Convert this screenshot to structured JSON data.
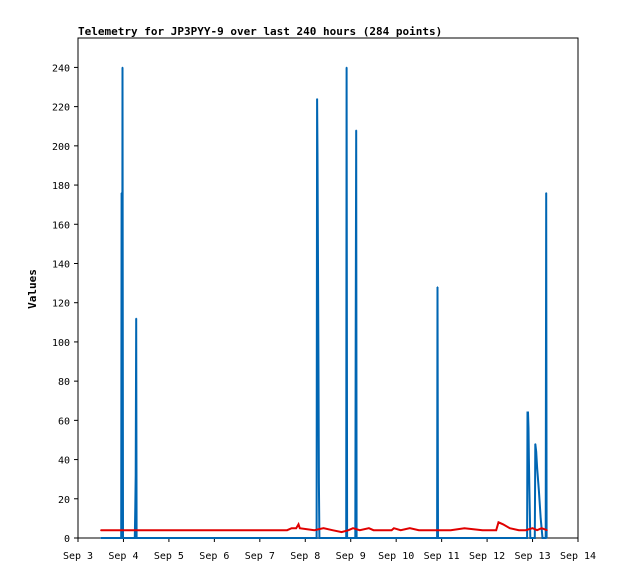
{
  "chart_data": {
    "type": "line",
    "title": "Telemetry for JP3PYY-9 over last 240 hours (284 points)",
    "ylabel": "Values",
    "xlabel": "",
    "xlim": [
      3.0,
      14.0
    ],
    "ylim": [
      0,
      255
    ],
    "grid": false,
    "legend": "none",
    "x_ticks": [
      3,
      4,
      5,
      6,
      7,
      8,
      9,
      10,
      11,
      12,
      13,
      14
    ],
    "x_tick_labels": [
      "Sep 3",
      "Sep 4",
      "Sep 5",
      "Sep 6",
      "Sep 7",
      "Sep 8",
      "Sep 9",
      "Sep 10",
      "Sep 11",
      "Sep 12",
      "Sep 13",
      "Sep 14"
    ],
    "y_ticks": [
      0,
      20,
      40,
      60,
      80,
      100,
      120,
      140,
      160,
      180,
      200,
      220,
      240
    ],
    "series": [
      {
        "color": "#0066b3",
        "points": [
          [
            3.5,
            0
          ],
          [
            3.95,
            0
          ],
          [
            3.96,
            176
          ],
          [
            3.97,
            0
          ],
          [
            3.98,
            240
          ],
          [
            3.99,
            0
          ],
          [
            4.25,
            0
          ],
          [
            4.26,
            16
          ],
          [
            4.27,
            32
          ],
          [
            4.28,
            112
          ],
          [
            4.29,
            0
          ],
          [
            8.25,
            0
          ],
          [
            8.26,
            224
          ],
          [
            8.27,
            196
          ],
          [
            8.28,
            140
          ],
          [
            8.29,
            84
          ],
          [
            8.3,
            28
          ],
          [
            8.31,
            0
          ],
          [
            8.9,
            0
          ],
          [
            8.91,
            240
          ],
          [
            8.92,
            0
          ],
          [
            9.1,
            0
          ],
          [
            9.11,
            104
          ],
          [
            9.12,
            208
          ],
          [
            9.13,
            0
          ],
          [
            10.9,
            0
          ],
          [
            10.91,
            128
          ],
          [
            10.92,
            0
          ],
          [
            12.88,
            0
          ],
          [
            12.89,
            64
          ],
          [
            12.9,
            64
          ],
          [
            12.91,
            56
          ],
          [
            12.92,
            40
          ],
          [
            12.93,
            24
          ],
          [
            12.95,
            0
          ],
          [
            13.05,
            0
          ],
          [
            13.06,
            48
          ],
          [
            13.08,
            44
          ],
          [
            13.1,
            36
          ],
          [
            13.14,
            24
          ],
          [
            13.18,
            10
          ],
          [
            13.22,
            0
          ],
          [
            13.29,
            0
          ],
          [
            13.3,
            176
          ],
          [
            13.31,
            0
          ]
        ]
      },
      {
        "color": "#e00000",
        "points": [
          [
            3.5,
            4
          ],
          [
            7.6,
            4
          ],
          [
            7.7,
            5
          ],
          [
            7.8,
            5
          ],
          [
            7.85,
            7
          ],
          [
            7.88,
            5
          ],
          [
            8.2,
            4
          ],
          [
            8.4,
            5
          ],
          [
            8.6,
            4
          ],
          [
            8.8,
            3
          ],
          [
            8.95,
            4
          ],
          [
            9.05,
            5
          ],
          [
            9.2,
            4
          ],
          [
            9.4,
            5
          ],
          [
            9.5,
            4
          ],
          [
            9.9,
            4
          ],
          [
            9.95,
            5
          ],
          [
            10.1,
            4
          ],
          [
            10.3,
            5
          ],
          [
            10.5,
            4
          ],
          [
            10.9,
            4
          ],
          [
            11.2,
            4
          ],
          [
            11.5,
            5
          ],
          [
            11.9,
            4
          ],
          [
            12.2,
            4
          ],
          [
            12.25,
            8
          ],
          [
            12.35,
            7
          ],
          [
            12.5,
            5
          ],
          [
            12.7,
            4
          ],
          [
            12.85,
            4
          ],
          [
            13.0,
            5
          ],
          [
            13.1,
            4
          ],
          [
            13.2,
            5
          ],
          [
            13.32,
            4
          ]
        ]
      }
    ]
  }
}
